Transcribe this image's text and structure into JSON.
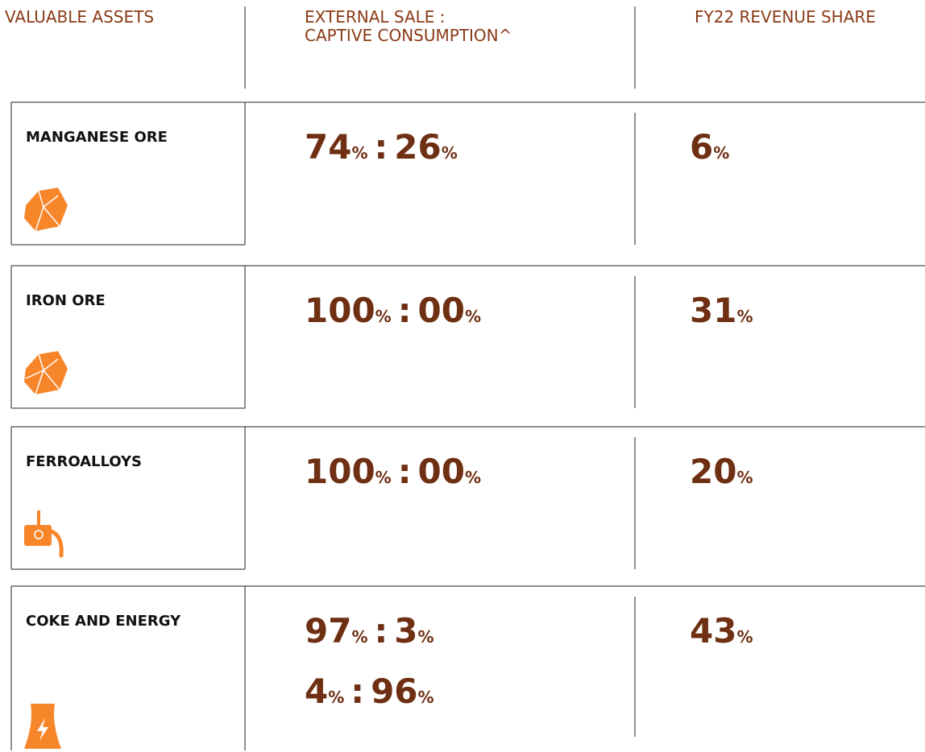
{
  "header": {
    "columns": [
      [
        "VALUABLE ASSETS"
      ],
      [
        "EXTERNAL SALE :",
        "CAPTIVE CONSUMPTION^"
      ],
      [
        "FY22 REVENUE SHARE"
      ]
    ]
  },
  "unit": "%",
  "separator": ":",
  "rows": [
    {
      "name": "MANGANESE ORE",
      "ratios": [
        [
          "74",
          "26"
        ]
      ],
      "share": "6"
    },
    {
      "name": "IRON ORE",
      "ratios": [
        [
          "100",
          "00"
        ]
      ],
      "share": "31"
    },
    {
      "name": "FERROALLOYS",
      "ratios": [
        [
          "100",
          "00"
        ]
      ],
      "share": "20"
    },
    {
      "name": "COKE AND ENERGY",
      "ratios": [
        [
          "97",
          "3"
        ],
        [
          "4",
          "96"
        ]
      ],
      "share": "43"
    }
  ]
}
